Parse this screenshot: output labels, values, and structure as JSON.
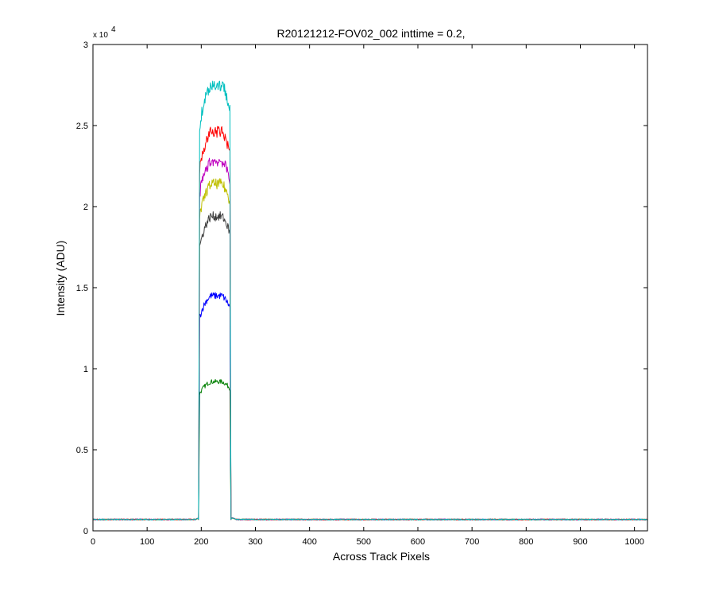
{
  "chart_data": {
    "type": "line",
    "title": "R20121212-FOV02_002 inttime = 0.2,",
    "xlabel": "Across Track Pixels",
    "ylabel": "Intensity (ADU)",
    "y_multiplier_label": "x 10",
    "y_multiplier_exponent": "4",
    "xlim": [
      0,
      1024
    ],
    "ylim": [
      0,
      3
    ],
    "y_scale_factor": 10000,
    "x_ticks": [
      0,
      100,
      200,
      300,
      400,
      500,
      600,
      700,
      800,
      900,
      1000
    ],
    "x_tick_labels": [
      "0",
      "100",
      "200",
      "300",
      "400",
      "500",
      "600",
      "700",
      "800",
      "900",
      "1000"
    ],
    "y_ticks": [
      0,
      0.5,
      1,
      1.5,
      2,
      2.5,
      3
    ],
    "y_tick_labels": [
      "0",
      "0.5",
      "1",
      "1.5",
      "2",
      "2.5",
      "3"
    ],
    "grid": false,
    "legend": "none",
    "baseline": 0.07,
    "series": [
      {
        "color": "#007f00",
        "peak": 0.92,
        "edge": 0.78,
        "x_start": 197,
        "x_end": 253
      },
      {
        "color": "#0000ff",
        "peak": 1.45,
        "edge": 1.2,
        "x_start": 197,
        "x_end": 253
      },
      {
        "color": "#3f3f3f",
        "peak": 1.94,
        "edge": 1.58,
        "x_start": 197,
        "x_end": 253
      },
      {
        "color": "#bfbf00",
        "peak": 2.14,
        "edge": 1.76,
        "x_start": 197,
        "x_end": 253
      },
      {
        "color": "#bf00bf",
        "peak": 2.28,
        "edge": 1.9,
        "x_start": 197,
        "x_end": 253
      },
      {
        "color": "#ff0000",
        "peak": 2.46,
        "edge": 2.02,
        "x_start": 197,
        "x_end": 253
      },
      {
        "color": "#00bfbf",
        "peak": 2.75,
        "edge": 2.28,
        "x_start": 197,
        "x_end": 253
      }
    ]
  }
}
